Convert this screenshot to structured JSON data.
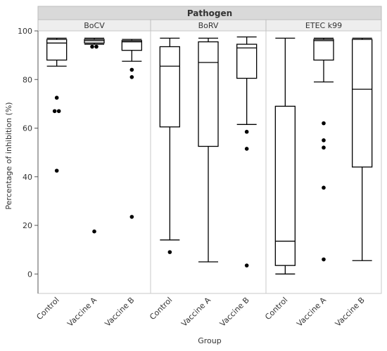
{
  "chart_data": {
    "type": "boxplot",
    "facet_title": "Pathogen",
    "ylabel": "Percentage of inhibition (%)",
    "xlabel": "Group",
    "ylim": [
      -8,
      100
    ],
    "yticks": [
      0,
      20,
      40,
      60,
      80,
      100
    ],
    "categories": [
      "Control",
      "Vaccine A",
      "Vaccine B"
    ],
    "panels": [
      {
        "name": "BoCV",
        "boxes": [
          {
            "group": "Control",
            "whisker_low": 85.5,
            "q1": 88,
            "median": 95,
            "q3": 96.5,
            "whisker_high": 97,
            "outliers": [
              72.5,
              67,
              67,
              42.5
            ]
          },
          {
            "group": "Vaccine A",
            "whisker_low": 94.5,
            "q1": 95,
            "median": 96,
            "q3": 96.5,
            "whisker_high": 97,
            "outliers": [
              93.5,
              93.5,
              17.5
            ]
          },
          {
            "group": "Vaccine B",
            "whisker_low": 87.5,
            "q1": 92,
            "median": 95.5,
            "q3": 96,
            "whisker_high": 96.5,
            "outliers": [
              84,
              81,
              23.5
            ]
          }
        ]
      },
      {
        "name": "BoRV",
        "boxes": [
          {
            "group": "Control",
            "whisker_low": 14,
            "q1": 60.5,
            "median": 85.5,
            "q3": 93.5,
            "whisker_high": 97,
            "outliers": [
              9
            ]
          },
          {
            "group": "Vaccine A",
            "whisker_low": 5,
            "q1": 52.5,
            "median": 87,
            "q3": 95.5,
            "whisker_high": 97,
            "outliers": []
          },
          {
            "group": "Vaccine B",
            "whisker_low": 61.5,
            "q1": 80.5,
            "median": 93,
            "q3": 94.5,
            "whisker_high": 97.5,
            "outliers": [
              58.5,
              51.5,
              3.5
            ]
          }
        ]
      },
      {
        "name": "ETEC k99",
        "boxes": [
          {
            "group": "Control",
            "whisker_low": 0,
            "q1": 3.5,
            "median": 13.5,
            "q3": 69,
            "whisker_high": 97,
            "outliers": []
          },
          {
            "group": "Vaccine A",
            "whisker_low": 79,
            "q1": 88,
            "median": 96,
            "q3": 96.5,
            "whisker_high": 97,
            "outliers": [
              62,
              55,
              52,
              35.5,
              6
            ]
          },
          {
            "group": "Vaccine B",
            "whisker_low": 5.5,
            "q1": 44,
            "median": 76,
            "q3": 96.5,
            "whisker_high": 97,
            "outliers": []
          }
        ]
      }
    ]
  }
}
